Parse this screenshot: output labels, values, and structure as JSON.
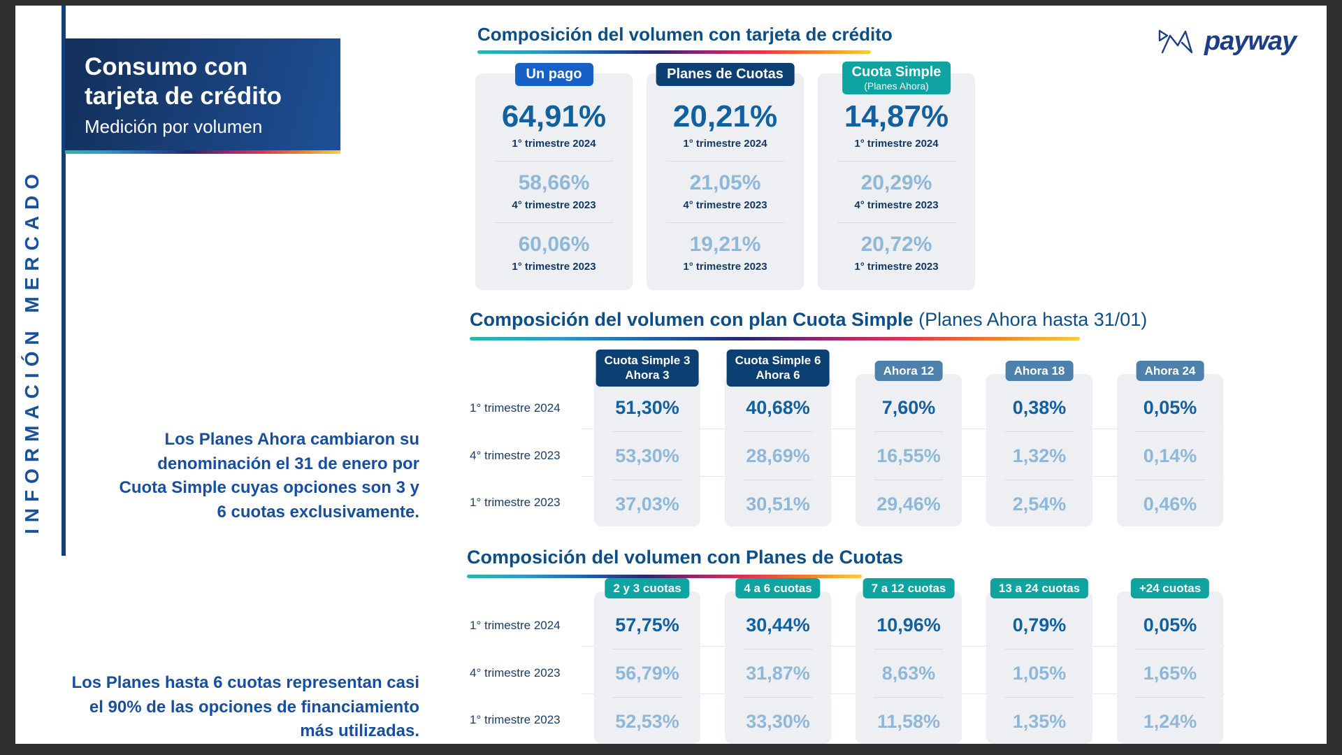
{
  "brand": {
    "wordmark": "payway"
  },
  "sidebar": {
    "vertical_label": "INFORMACIÓN MERCADO"
  },
  "header": {
    "title": "Consumo con tarjeta de crédito",
    "subtitle": "Medición por volumen"
  },
  "notes": [
    {
      "text": "Los Planes Ahora cambiaron su denominación el 31 de enero por Cuota Simple cuyas opciones son 3 y 6 cuotas exclusivamente."
    },
    {
      "text": "Los Planes hasta 6 cuotas representan casi el 90% de las opciones de financiamiento más utilizadas."
    }
  ],
  "colors": {
    "frame": "#2d2f31",
    "heading_blue": "#0e4e86",
    "value_blue": "#1160a0",
    "value_light": "#8fb8d8",
    "badge_blue": "#1660c8",
    "badge_navy": "#0c3f72",
    "badge_steel": "#4d80ab",
    "badge_teal": "#0fa3a1",
    "card_bg": "#edeff3",
    "note_blue": "#174f9e"
  },
  "section1": {
    "title": "Composición del volumen con tarjeta de crédito",
    "cards": [
      {
        "badge": "Un pago",
        "badge_style": "blue",
        "rows": [
          {
            "value": "64,91%",
            "label": "1° trimestre 2024"
          },
          {
            "value": "58,66%",
            "label": "4° trimestre 2023"
          },
          {
            "value": "60,06%",
            "label": "1° trimestre 2023"
          }
        ]
      },
      {
        "badge": "Planes de Cuotas",
        "badge_style": "navy",
        "rows": [
          {
            "value": "20,21%",
            "label": "1° trimestre 2024"
          },
          {
            "value": "21,05%",
            "label": "4° trimestre 2023"
          },
          {
            "value": "19,21%",
            "label": "1° trimestre 2023"
          }
        ]
      },
      {
        "badge": "Cuota Simple",
        "badge_sub": "(Planes Ahora)",
        "badge_style": "teal",
        "rows": [
          {
            "value": "14,87%",
            "label": "1° trimestre 2024"
          },
          {
            "value": "20,29%",
            "label": "4° trimestre 2023"
          },
          {
            "value": "20,72%",
            "label": "1° trimestre 2023"
          }
        ]
      }
    ]
  },
  "section2": {
    "title_bold": "Composición del volumen con plan Cuota Simple",
    "title_regular": " (Planes Ahora hasta 31/01)",
    "row_labels": [
      "1° trimestre 2024",
      "4° trimestre 2023",
      "1° trimestre 2023"
    ],
    "columns": [
      {
        "badge_lines": [
          "Cuota Simple 3",
          "Ahora 3"
        ],
        "badge_style": "navy",
        "values": [
          "51,30%",
          "53,30%",
          "37,03%"
        ]
      },
      {
        "badge_lines": [
          "Cuota Simple 6",
          "Ahora 6"
        ],
        "badge_style": "navy",
        "values": [
          "40,68%",
          "28,69%",
          "30,51%"
        ]
      },
      {
        "badge_lines": [
          "Ahora 12"
        ],
        "badge_style": "steel",
        "values": [
          "7,60%",
          "16,55%",
          "29,46%"
        ]
      },
      {
        "badge_lines": [
          "Ahora 18"
        ],
        "badge_style": "steel",
        "values": [
          "0,38%",
          "1,32%",
          "2,54%"
        ]
      },
      {
        "badge_lines": [
          "Ahora 24"
        ],
        "badge_style": "steel",
        "values": [
          "0,05%",
          "0,14%",
          "0,46%"
        ]
      }
    ]
  },
  "section3": {
    "title_bold": "Composición del volumen con Planes de Cuotas",
    "title_regular": "",
    "row_labels": [
      "1° trimestre 2024",
      "4° trimestre 2023",
      "1° trimestre 2023"
    ],
    "columns": [
      {
        "badge_lines": [
          "2 y 3 cuotas"
        ],
        "badge_style": "teal",
        "values": [
          "57,75%",
          "56,79%",
          "52,53%"
        ]
      },
      {
        "badge_lines": [
          "4 a 6 cuotas"
        ],
        "badge_style": "teal",
        "values": [
          "30,44%",
          "31,87%",
          "33,30%"
        ]
      },
      {
        "badge_lines": [
          "7 a 12 cuotas"
        ],
        "badge_style": "teal",
        "values": [
          "10,96%",
          "8,63%",
          "11,58%"
        ]
      },
      {
        "badge_lines": [
          "13 a 24 cuotas"
        ],
        "badge_style": "teal",
        "values": [
          "0,79%",
          "1,05%",
          "1,35%"
        ]
      },
      {
        "badge_lines": [
          "+24 cuotas"
        ],
        "badge_style": "teal",
        "values": [
          "0,05%",
          "1,65%",
          "1,24%"
        ]
      }
    ]
  }
}
